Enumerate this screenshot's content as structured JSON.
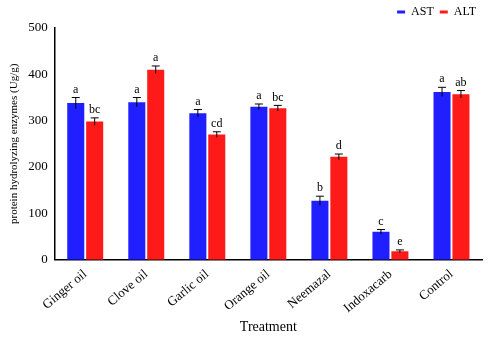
{
  "chart_data": {
    "type": "bar",
    "x_label": "Treatment",
    "y_label": "protein hydrolyzing enzymes (Ug/g)",
    "categories": [
      "Ginger oil",
      "Clove oil",
      "Garlic oil",
      "Orange oil",
      "Neemazal",
      "Indoxacarb",
      "Control"
    ],
    "series": [
      {
        "name": "AST",
        "color": "#1f1fff",
        "values": [
          338,
          340,
          316,
          330,
          127,
          60,
          362
        ],
        "errors": [
          12,
          10,
          8,
          6,
          10,
          5,
          10
        ],
        "annotations": [
          "a",
          "a",
          "a",
          "a",
          "b",
          "c",
          "a"
        ]
      },
      {
        "name": "ALT",
        "color": "#ff1a1a",
        "values": [
          298,
          410,
          270,
          327,
          222,
          18,
          357
        ],
        "errors": [
          8,
          8,
          6,
          6,
          6,
          3,
          8
        ],
        "annotations": [
          "bc",
          "a",
          "cd",
          "bc",
          "d",
          "e",
          "ab"
        ]
      }
    ],
    "ylim": [
      0,
      500
    ],
    "yticks": [
      0,
      100,
      200,
      300,
      400,
      500
    ],
    "grid": false,
    "legend": "upper right"
  }
}
